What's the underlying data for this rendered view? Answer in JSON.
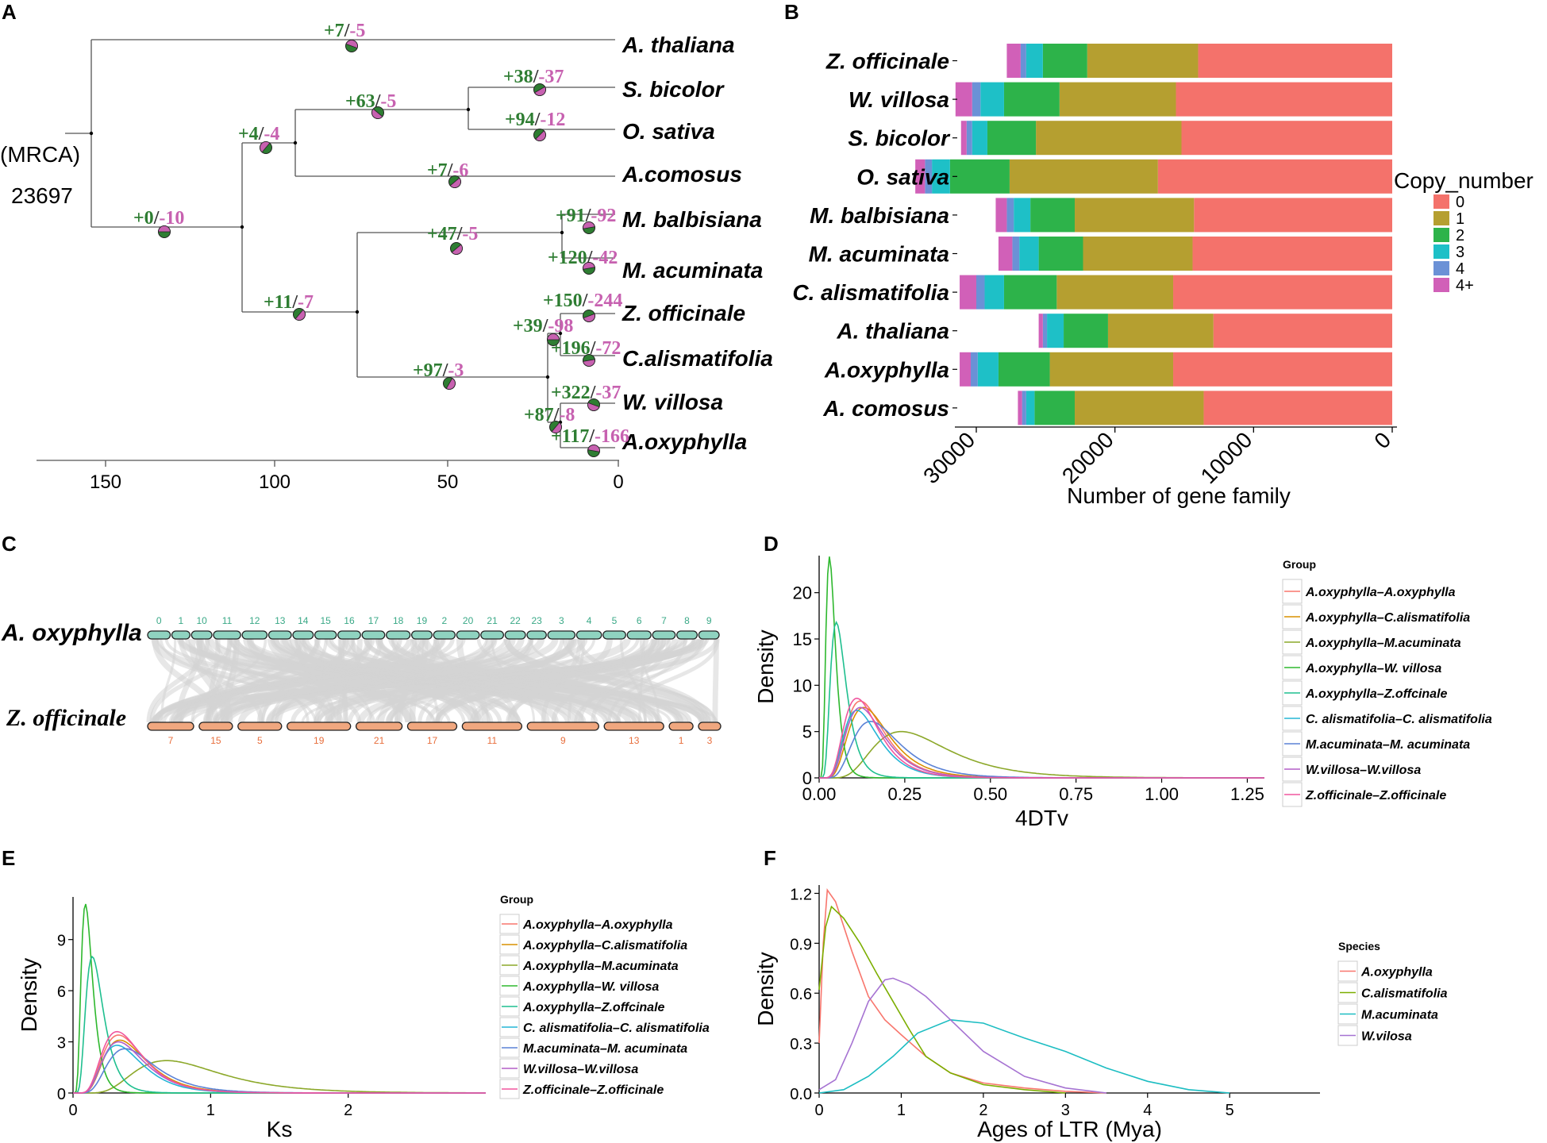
{
  "colors": {
    "gain": "#2e7d32",
    "loss": "#c761b0",
    "copy": [
      "#f4726b",
      "#b59f30",
      "#2db34a",
      "#1ec0c7",
      "#6b91d6",
      "#d160b8"
    ]
  },
  "panels": {
    "A": "A",
    "B": "B",
    "C": "C",
    "D": "D",
    "E": "E",
    "F": "F"
  },
  "panelA": {
    "mrca_label": "(MRCA)",
    "mrca_count": "23697",
    "axis_ticks": [
      "150",
      "100",
      "50",
      "0"
    ],
    "taxa": [
      "A. thaliana",
      "S. bicolor",
      "O. sativa",
      "A.comosus",
      "M. balbisiana",
      "M. acuminata",
      "Z. officinale",
      "C.alismatifolia",
      "W. villosa",
      "A.oxyphylla"
    ],
    "changes": [
      {
        "gain": "+7",
        "loss": "-5"
      },
      {
        "gain": "+38",
        "loss": "-37"
      },
      {
        "gain": "+63",
        "loss": "-5"
      },
      {
        "gain": "+94",
        "loss": "-12"
      },
      {
        "gain": "+4",
        "loss": "-4"
      },
      {
        "gain": "+7",
        "loss": "-6"
      },
      {
        "gain": "+0",
        "loss": "-10"
      },
      {
        "gain": "+91",
        "loss": "-92"
      },
      {
        "gain": "+47",
        "loss": "-5"
      },
      {
        "gain": "+120",
        "loss": "-42"
      },
      {
        "gain": "+150",
        "loss": "-244"
      },
      {
        "gain": "+11",
        "loss": "-7"
      },
      {
        "gain": "+39",
        "loss": "-98"
      },
      {
        "gain": "+196",
        "loss": "-72"
      },
      {
        "gain": "+97",
        "loss": "-3"
      },
      {
        "gain": "+322",
        "loss": "-37"
      },
      {
        "gain": "+87",
        "loss": "-8"
      },
      {
        "gain": "+117",
        "loss": "-166"
      }
    ]
  },
  "panelC": {
    "species_top": "A. oxyphylla",
    "species_bottom": "Z. officinale",
    "top_chroms": [
      "0",
      "1",
      "10",
      "11",
      "12",
      "13",
      "14",
      "15",
      "16",
      "17",
      "18",
      "19",
      "2",
      "20",
      "21",
      "22",
      "23",
      "3",
      "4",
      "5",
      "6",
      "7",
      "8",
      "9"
    ],
    "bottom_chroms": [
      "7",
      "15",
      "5",
      "19",
      "21",
      "17",
      "11",
      "9",
      "13",
      "1",
      "3"
    ]
  },
  "chart_data": [
    {
      "id": "B",
      "type": "bar",
      "orientation": "horizontal-stacked",
      "xlabel": "Number of gene family",
      "x_ticks": [
        "30000",
        "20000",
        "10000",
        "0"
      ],
      "xlim": [
        33000,
        0
      ],
      "legend_title": "Copy_number",
      "legend_labels": [
        "0",
        "1",
        "2",
        "3",
        "4",
        "4+"
      ],
      "categories": [
        "Z. officinale",
        "W. villosa",
        "S. bicolor",
        "O. sativa",
        "M. balbisiana",
        "M. acuminata",
        "C. alismatifolia",
        "A. thaliana",
        "A.oxyphylla",
        "A. comosus"
      ],
      "series": [
        {
          "name": "0",
          "values": [
            14000,
            15600,
            15200,
            16900,
            14300,
            14400,
            15800,
            12900,
            15800,
            13600
          ]
        },
        {
          "name": "1",
          "values": [
            8000,
            8400,
            10500,
            10700,
            8600,
            7900,
            8400,
            7600,
            8900,
            9300
          ]
        },
        {
          "name": "2",
          "values": [
            3200,
            4000,
            3500,
            4300,
            3200,
            3200,
            3800,
            3200,
            3700,
            2900
          ]
        },
        {
          "name": "3",
          "values": [
            1200,
            1700,
            1100,
            1300,
            1200,
            1400,
            1400,
            1200,
            1500,
            600
          ]
        },
        {
          "name": "4",
          "values": [
            400,
            600,
            400,
            500,
            500,
            500,
            600,
            300,
            500,
            300
          ]
        },
        {
          "name": "4+",
          "values": [
            1000,
            1200,
            400,
            700,
            800,
            1000,
            1200,
            300,
            800,
            300
          ]
        }
      ]
    },
    {
      "id": "D",
      "type": "line",
      "xlabel": "4DTv",
      "ylabel": "Density",
      "xlim": [
        0,
        1.3
      ],
      "ylim": [
        0,
        24
      ],
      "x_ticks": [
        "0.00",
        "0.25",
        "0.50",
        "0.75",
        "1.00",
        "1.25"
      ],
      "y_ticks": [
        "0",
        "5",
        "10",
        "15",
        "20"
      ],
      "legend_title": "Group",
      "series": [
        {
          "name": "A.oxyphylla–A.oxyphylla",
          "color": "#f8766d",
          "peak_x": 0.12,
          "peak_y": 8.3,
          "width": 0.05
        },
        {
          "name": "A.oxyphylla–C.alismatifolia",
          "color": "#d89000",
          "peak_x": 0.13,
          "peak_y": 7.6,
          "width": 0.055
        },
        {
          "name": "A.oxyphylla–M.acuminata",
          "color": "#8ca82a",
          "peak_x": 0.24,
          "peak_y": 5.0,
          "width": 0.1
        },
        {
          "name": "A.oxyphylla–W. villosa",
          "color": "#2eb82e",
          "peak_x": 0.03,
          "peak_y": 23.9,
          "width": 0.016
        },
        {
          "name": "A.oxyphylla–Z.offcinale",
          "color": "#1fbf8f",
          "peak_x": 0.05,
          "peak_y": 16.8,
          "width": 0.022
        },
        {
          "name": "C. alismatifolia–C. alismatifolia",
          "color": "#25b5d6",
          "peak_x": 0.11,
          "peak_y": 7.3,
          "width": 0.05
        },
        {
          "name": "M.acuminata–M. acuminata",
          "color": "#5b82d6",
          "peak_x": 0.15,
          "peak_y": 6.1,
          "width": 0.07
        },
        {
          "name": "W.villosa–W.villosa",
          "color": "#b35ec7",
          "peak_x": 0.12,
          "peak_y": 7.6,
          "width": 0.055
        },
        {
          "name": "Z.officinale–Z.officinale",
          "color": "#f0569e",
          "peak_x": 0.11,
          "peak_y": 8.6,
          "width": 0.05
        }
      ]
    },
    {
      "id": "E",
      "type": "line",
      "xlabel": "Ks",
      "ylabel": "Density",
      "xlim": [
        0,
        3.0
      ],
      "ylim": [
        0,
        11.5
      ],
      "x_ticks": [
        "0",
        "1",
        "2"
      ],
      "y_ticks": [
        "0",
        "3",
        "6",
        "9"
      ],
      "legend_title": "Group",
      "series": [
        {
          "name": "A.oxyphylla–A.oxyphylla",
          "color": "#f8766d",
          "peak_x": 0.33,
          "peak_y": 3.4,
          "width": 0.11
        },
        {
          "name": "A.oxyphylla–C.alismatifolia",
          "color": "#d89000",
          "peak_x": 0.34,
          "peak_y": 3.1,
          "width": 0.12
        },
        {
          "name": "A.oxyphylla–M.acuminata",
          "color": "#8ca82a",
          "peak_x": 0.68,
          "peak_y": 1.9,
          "width": 0.2
        },
        {
          "name": "A.oxyphylla–W. villosa",
          "color": "#2eb82e",
          "peak_x": 0.09,
          "peak_y": 11.1,
          "width": 0.035
        },
        {
          "name": "A.oxyphylla–Z.offcinale",
          "color": "#1fbf8f",
          "peak_x": 0.14,
          "peak_y": 8.0,
          "width": 0.05
        },
        {
          "name": "C. alismatifolia–C. alismatifolia",
          "color": "#25b5d6",
          "peak_x": 0.32,
          "peak_y": 2.8,
          "width": 0.11
        },
        {
          "name": "M.acuminata–M. acuminata",
          "color": "#5b82d6",
          "peak_x": 0.38,
          "peak_y": 2.6,
          "width": 0.16
        },
        {
          "name": "W.villosa–W.villosa",
          "color": "#b35ec7",
          "peak_x": 0.33,
          "peak_y": 3.0,
          "width": 0.13
        },
        {
          "name": "Z.officinale–Z.officinale",
          "color": "#f0569e",
          "peak_x": 0.32,
          "peak_y": 3.6,
          "width": 0.11
        }
      ]
    },
    {
      "id": "F",
      "type": "line",
      "xlabel": "Ages of LTR (Mya)",
      "ylabel": "Density",
      "xlim": [
        0,
        6.1
      ],
      "ylim": [
        0,
        1.25
      ],
      "x_ticks": [
        "0",
        "1",
        "2",
        "3",
        "4",
        "5"
      ],
      "y_ticks": [
        "0.0",
        "0.3",
        "0.6",
        "0.9",
        "1.2"
      ],
      "legend_title": "Species",
      "series": [
        {
          "name": "A.oxyphylla",
          "color": "#f8766d",
          "points": [
            [
              0,
              0.3
            ],
            [
              0.05,
              0.9
            ],
            [
              0.1,
              1.22
            ],
            [
              0.2,
              1.15
            ],
            [
              0.4,
              0.85
            ],
            [
              0.6,
              0.58
            ],
            [
              0.8,
              0.44
            ],
            [
              1.0,
              0.35
            ],
            [
              1.3,
              0.22
            ],
            [
              1.6,
              0.12
            ],
            [
              2.0,
              0.06
            ],
            [
              2.5,
              0.03
            ],
            [
              3.0,
              0.01
            ],
            [
              3.5,
              0
            ]
          ]
        },
        {
          "name": "C.alismatifolia",
          "color": "#7cae00",
          "points": [
            [
              0,
              0.62
            ],
            [
              0.08,
              1.0
            ],
            [
              0.15,
              1.12
            ],
            [
              0.3,
              1.05
            ],
            [
              0.5,
              0.9
            ],
            [
              0.7,
              0.72
            ],
            [
              0.9,
              0.55
            ],
            [
              1.1,
              0.38
            ],
            [
              1.3,
              0.22
            ],
            [
              1.6,
              0.12
            ],
            [
              2.0,
              0.05
            ],
            [
              2.5,
              0.02
            ],
            [
              3.0,
              0
            ]
          ]
        },
        {
          "name": "M.acuminata",
          "color": "#1cbdc2",
          "points": [
            [
              0,
              0
            ],
            [
              0.3,
              0.02
            ],
            [
              0.6,
              0.1
            ],
            [
              0.9,
              0.22
            ],
            [
              1.2,
              0.36
            ],
            [
              1.6,
              0.44
            ],
            [
              2.0,
              0.42
            ],
            [
              2.5,
              0.33
            ],
            [
              3.0,
              0.25
            ],
            [
              3.5,
              0.15
            ],
            [
              4.0,
              0.07
            ],
            [
              4.5,
              0.02
            ],
            [
              5.0,
              0
            ]
          ]
        },
        {
          "name": "W.vilosa",
          "color": "#a673d2",
          "points": [
            [
              0,
              0.02
            ],
            [
              0.2,
              0.08
            ],
            [
              0.4,
              0.3
            ],
            [
              0.6,
              0.55
            ],
            [
              0.8,
              0.68
            ],
            [
              0.9,
              0.69
            ],
            [
              1.1,
              0.65
            ],
            [
              1.3,
              0.58
            ],
            [
              1.6,
              0.44
            ],
            [
              2.0,
              0.25
            ],
            [
              2.5,
              0.1
            ],
            [
              3.0,
              0.03
            ],
            [
              3.5,
              0
            ]
          ]
        }
      ]
    }
  ]
}
